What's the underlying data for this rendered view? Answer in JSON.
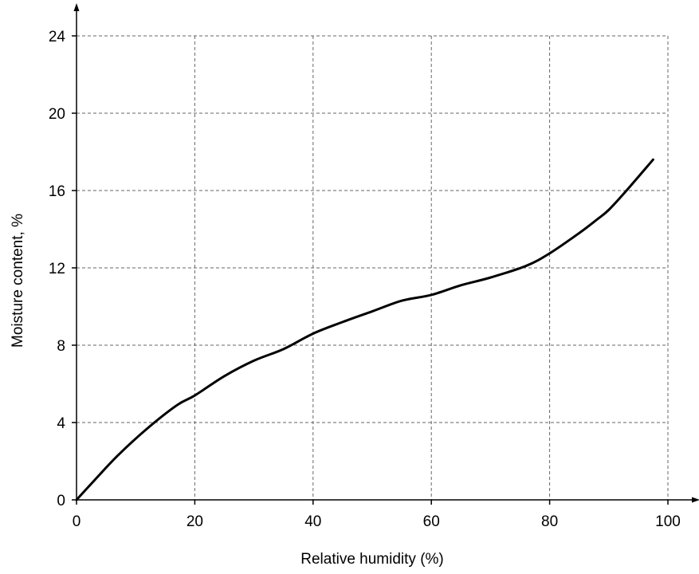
{
  "chart_data": {
    "type": "line",
    "title": "",
    "xlabel": "Relative humidity (%)",
    "ylabel": "Moisture content, %",
    "xlim": [
      0,
      100
    ],
    "ylim": [
      0,
      24
    ],
    "x_ticks": [
      0,
      20,
      40,
      60,
      80,
      100
    ],
    "y_ticks": [
      0,
      4,
      8,
      12,
      16,
      20,
      24
    ],
    "x_tick_labels": [
      "0",
      "20",
      "40",
      "60",
      "80",
      "100"
    ],
    "y_tick_labels": [
      "0",
      "4",
      "8",
      "12",
      "16",
      "20",
      "24"
    ],
    "grid": true,
    "series": [
      {
        "x": [
          0,
          3,
          7,
          12,
          17,
          20,
          25,
          30,
          35,
          40,
          45,
          50,
          55,
          60,
          65,
          70,
          76,
          80,
          85,
          88,
          90,
          93,
          97.5
        ],
        "y": [
          0,
          1,
          2.3,
          3.7,
          4.9,
          5.4,
          6.4,
          7.2,
          7.8,
          8.6,
          9.2,
          9.75,
          10.3,
          10.6,
          11.1,
          11.5,
          12.1,
          12.75,
          13.8,
          14.5,
          15.0,
          16.0,
          17.6
        ]
      }
    ]
  }
}
